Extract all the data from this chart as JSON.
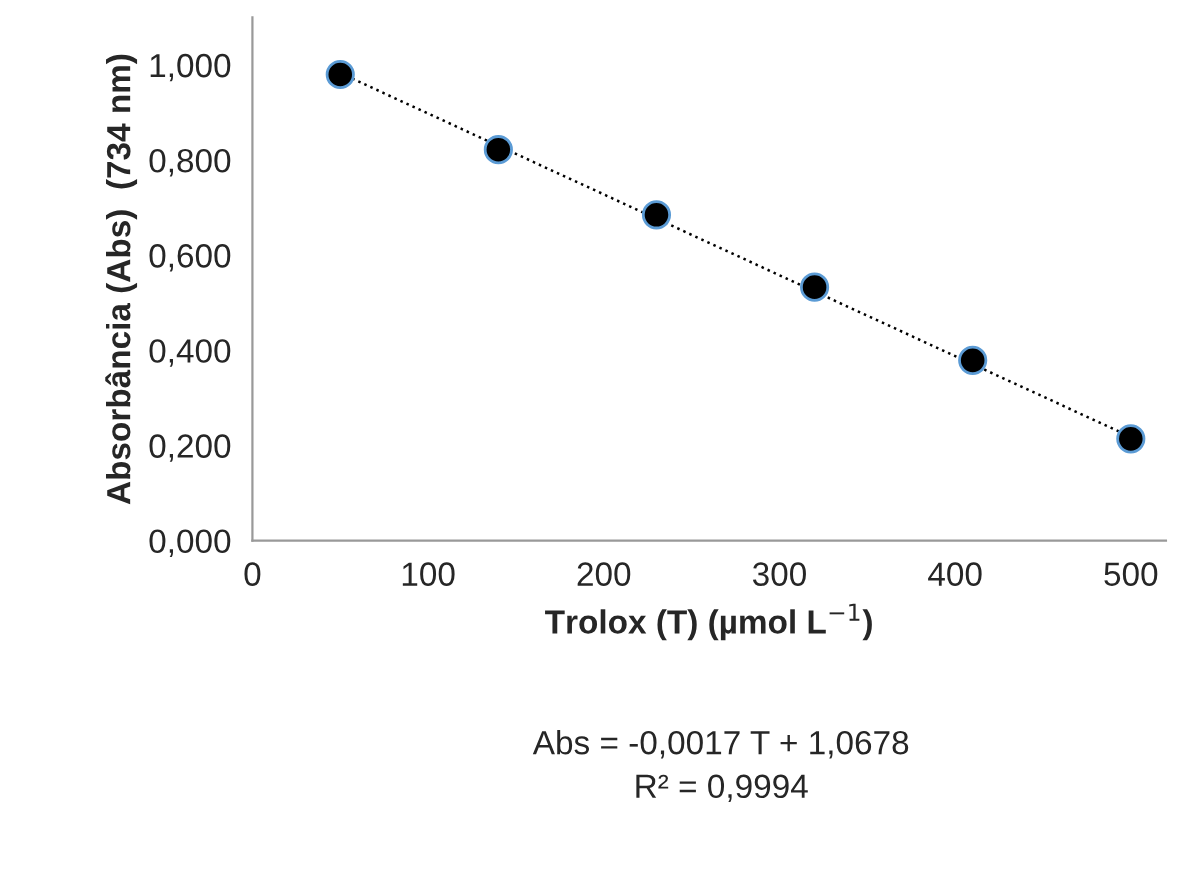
{
  "chart_data": {
    "type": "scatter",
    "xlabel": "Trolox (T) (µmol L$^{−1}$)",
    "ylabel": "Absorbância (Abs)  (734 nm)",
    "x": [
      50,
      140,
      230,
      320,
      410,
      500
    ],
    "series": [
      {
        "color": "#000000",
        "values": [
          0.98,
          0.822,
          0.685,
          0.533,
          0.379,
          0.214
        ],
        "marker": "circle"
      },
      {
        "type": "line",
        "color": "#000000",
        "x": [
          50,
          500
        ],
        "values": [
          0.983,
          0.218
        ],
        "line_style": "dotted",
        "marker": "none"
      }
    ],
    "xlim": [
      0,
      520
    ],
    "xticks": [
      0,
      100,
      200,
      300,
      400,
      500
    ],
    "ylim": [
      0,
      1.1
    ],
    "yticks": [
      {
        "value": 0,
        "label": "0,000"
      },
      {
        "value": 0.2,
        "label": "0,200"
      },
      {
        "value": 0.4,
        "label": "0,400"
      },
      {
        "value": 0.6,
        "label": "0,600"
      },
      {
        "value": 0.8,
        "label": "0,800"
      },
      {
        "value": 1.0,
        "label": "1,000"
      }
    ],
    "grid": false,
    "legend": false,
    "annotations": [
      "Abs = -0,0017 T + 1,0678",
      "R² = 0,9994"
    ]
  }
}
